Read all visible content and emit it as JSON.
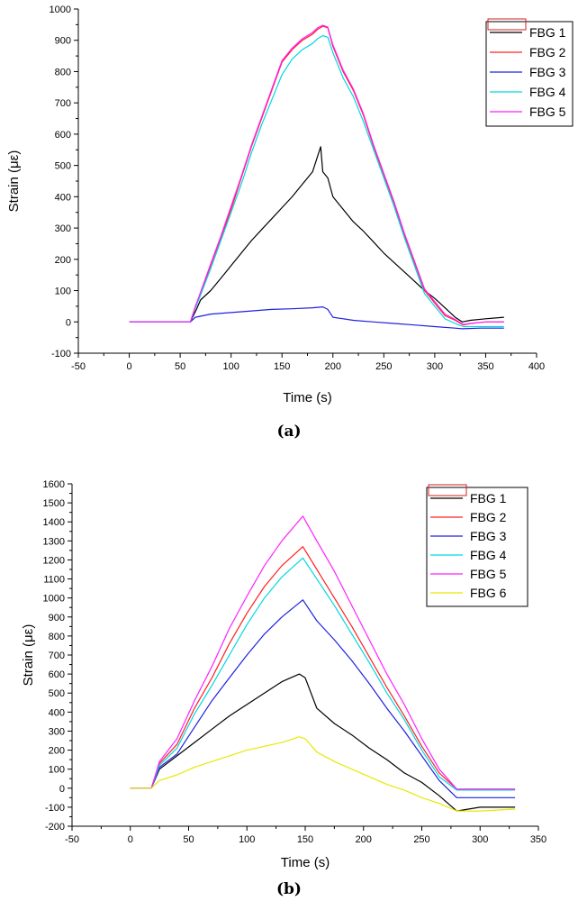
{
  "figure": {
    "captions": [
      "(a)",
      "(b)"
    ]
  },
  "chart_data": [
    {
      "type": "line",
      "panel_label": "(a)",
      "title": "",
      "xlabel": "Time (s)",
      "ylabel": "Strain (με)",
      "xlim": [
        -50,
        400
      ],
      "ylim": [
        -100,
        1000
      ],
      "xticks": [
        -50,
        0,
        50,
        100,
        150,
        200,
        250,
        300,
        350,
        400
      ],
      "yticks": [
        -100,
        0,
        100,
        200,
        300,
        400,
        500,
        600,
        700,
        800,
        900,
        1000
      ],
      "legend_position": "top-right",
      "series": [
        {
          "name": "FBG 1",
          "color": "#000000",
          "x": [
            0,
            60,
            66,
            70,
            80,
            90,
            100,
            110,
            120,
            130,
            140,
            150,
            160,
            170,
            180,
            188,
            190,
            195,
            200,
            210,
            220,
            230,
            240,
            250,
            260,
            270,
            280,
            290,
            300,
            310,
            320,
            327,
            335,
            350,
            368
          ],
          "y": [
            0,
            0,
            40,
            70,
            100,
            140,
            180,
            220,
            260,
            295,
            330,
            365,
            400,
            440,
            480,
            560,
            480,
            460,
            400,
            360,
            320,
            290,
            255,
            220,
            190,
            160,
            130,
            100,
            75,
            45,
            15,
            0,
            5,
            10,
            15
          ]
        },
        {
          "name": "FBG 2",
          "color": "#ff2020",
          "x": [
            0,
            60,
            65,
            70,
            80,
            90,
            100,
            110,
            120,
            130,
            140,
            150,
            160,
            170,
            180,
            185,
            190,
            195,
            200,
            210,
            220,
            230,
            240,
            250,
            260,
            270,
            280,
            290,
            300,
            310,
            320,
            328,
            335,
            350,
            368
          ],
          "y": [
            0,
            0,
            50,
            90,
            180,
            270,
            360,
            460,
            560,
            650,
            740,
            830,
            870,
            900,
            920,
            935,
            945,
            940,
            880,
            800,
            740,
            660,
            560,
            470,
            380,
            280,
            190,
            100,
            60,
            20,
            5,
            -10,
            -5,
            0,
            0
          ]
        },
        {
          "name": "FBG 3",
          "color": "#2020e0",
          "x": [
            0,
            60,
            65,
            80,
            100,
            120,
            140,
            160,
            180,
            190,
            195,
            200,
            220,
            240,
            260,
            280,
            300,
            320,
            327,
            345,
            368
          ],
          "y": [
            0,
            0,
            15,
            25,
            30,
            35,
            40,
            42,
            45,
            48,
            40,
            15,
            5,
            0,
            -5,
            -10,
            -15,
            -20,
            -22,
            -20,
            -20
          ]
        },
        {
          "name": "FBG 4",
          "color": "#00d8e0",
          "x": [
            0,
            60,
            65,
            70,
            80,
            90,
            100,
            110,
            120,
            130,
            140,
            150,
            160,
            170,
            180,
            185,
            190,
            195,
            200,
            210,
            220,
            230,
            240,
            250,
            260,
            270,
            280,
            290,
            300,
            310,
            320,
            328,
            335,
            350,
            368
          ],
          "y": [
            0,
            0,
            45,
            85,
            170,
            260,
            350,
            440,
            540,
            630,
            710,
            790,
            840,
            870,
            890,
            905,
            915,
            910,
            860,
            780,
            720,
            640,
            550,
            460,
            370,
            270,
            180,
            90,
            50,
            10,
            -5,
            -15,
            -15,
            -15,
            -15
          ]
        },
        {
          "name": "FBG 5",
          "color": "#ff20ff",
          "x": [
            0,
            60,
            65,
            70,
            80,
            90,
            100,
            110,
            120,
            130,
            140,
            150,
            160,
            170,
            180,
            185,
            190,
            195,
            200,
            210,
            220,
            230,
            240,
            250,
            260,
            270,
            280,
            290,
            300,
            310,
            320,
            328,
            335,
            350,
            368
          ],
          "y": [
            0,
            0,
            50,
            95,
            185,
            275,
            370,
            465,
            565,
            655,
            745,
            835,
            875,
            905,
            925,
            940,
            948,
            942,
            885,
            805,
            745,
            665,
            565,
            475,
            385,
            285,
            195,
            105,
            65,
            25,
            8,
            -8,
            -5,
            0,
            0
          ]
        }
      ]
    },
    {
      "type": "line",
      "panel_label": "(b)",
      "title": "",
      "xlabel": "Time (s)",
      "ylabel": "Strain (με)",
      "xlim": [
        -50,
        350
      ],
      "ylim": [
        -200,
        1600
      ],
      "xticks": [
        -50,
        0,
        50,
        100,
        150,
        200,
        250,
        300,
        350
      ],
      "yticks": [
        -200,
        -100,
        0,
        100,
        200,
        300,
        400,
        500,
        600,
        700,
        800,
        900,
        1000,
        1100,
        1200,
        1300,
        1400,
        1500,
        1600
      ],
      "legend_position": "top-right",
      "series": [
        {
          "name": "FBG 1",
          "color": "#000000",
          "x": [
            0,
            18,
            25,
            40,
            55,
            70,
            85,
            100,
            115,
            130,
            145,
            150,
            160,
            175,
            190,
            205,
            220,
            235,
            250,
            265,
            280,
            300,
            330
          ],
          "y": [
            0,
            0,
            100,
            170,
            240,
            310,
            380,
            440,
            500,
            560,
            600,
            580,
            420,
            340,
            280,
            210,
            150,
            80,
            30,
            -40,
            -120,
            -100,
            -100
          ]
        },
        {
          "name": "FBG 2",
          "color": "#ff2020",
          "x": [
            0,
            18,
            25,
            40,
            55,
            70,
            85,
            100,
            115,
            130,
            148,
            160,
            175,
            190,
            205,
            220,
            235,
            250,
            265,
            280,
            300,
            330
          ],
          "y": [
            0,
            0,
            130,
            230,
            420,
            580,
            760,
            920,
            1060,
            1170,
            1270,
            1150,
            1000,
            850,
            690,
            530,
            380,
            220,
            80,
            -5,
            -5,
            -5
          ]
        },
        {
          "name": "FBG 3",
          "color": "#2020e0",
          "x": [
            0,
            18,
            25,
            40,
            55,
            70,
            85,
            100,
            115,
            130,
            148,
            160,
            175,
            190,
            205,
            220,
            235,
            250,
            265,
            280,
            300,
            330
          ],
          "y": [
            0,
            0,
            110,
            180,
            320,
            460,
            580,
            700,
            810,
            900,
            990,
            880,
            780,
            670,
            550,
            420,
            300,
            170,
            40,
            -50,
            -50,
            -50
          ]
        },
        {
          "name": "FBG 4",
          "color": "#00d8e0",
          "x": [
            0,
            18,
            25,
            40,
            55,
            70,
            85,
            100,
            115,
            130,
            148,
            160,
            175,
            190,
            205,
            220,
            235,
            250,
            265,
            280,
            300,
            330
          ],
          "y": [
            0,
            0,
            120,
            210,
            390,
            540,
            700,
            860,
            1000,
            1110,
            1210,
            1100,
            960,
            810,
            660,
            500,
            360,
            200,
            60,
            -10,
            -10,
            -10
          ]
        },
        {
          "name": "FBG 5",
          "color": "#ff20ff",
          "x": [
            0,
            18,
            25,
            40,
            55,
            70,
            85,
            100,
            115,
            130,
            148,
            160,
            175,
            190,
            205,
            220,
            235,
            250,
            265,
            280,
            300,
            330
          ],
          "y": [
            0,
            0,
            140,
            260,
            460,
            640,
            840,
            1010,
            1170,
            1300,
            1430,
            1300,
            1140,
            960,
            780,
            600,
            440,
            260,
            100,
            -5,
            -5,
            -5
          ]
        },
        {
          "name": "FBG 6",
          "color": "#e8e800",
          "x": [
            0,
            18,
            25,
            40,
            55,
            70,
            85,
            100,
            115,
            130,
            145,
            150,
            160,
            175,
            190,
            205,
            220,
            235,
            250,
            265,
            280,
            300,
            330
          ],
          "y": [
            0,
            0,
            40,
            70,
            110,
            140,
            170,
            200,
            220,
            240,
            270,
            260,
            190,
            140,
            100,
            60,
            20,
            -10,
            -50,
            -80,
            -120,
            -120,
            -110
          ]
        }
      ]
    }
  ]
}
